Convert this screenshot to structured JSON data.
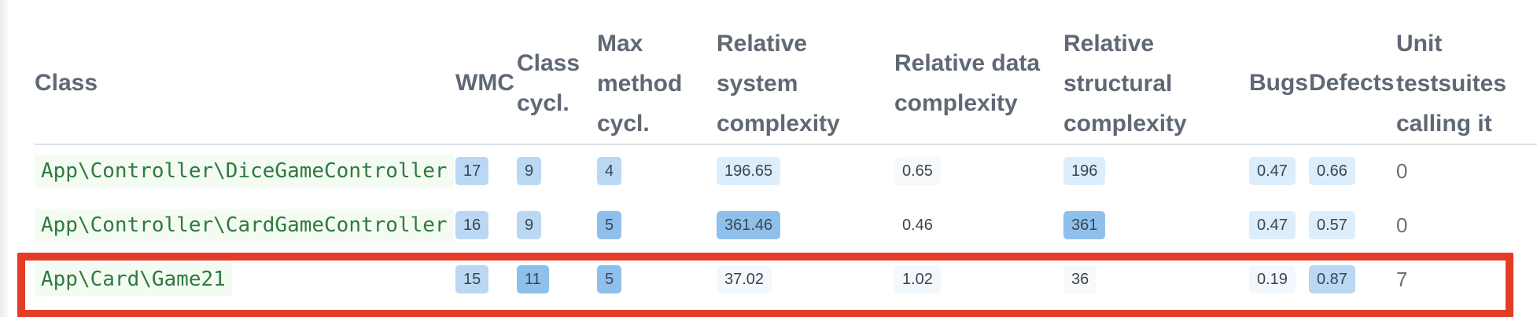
{
  "colors": {
    "link_green": "#2f7a3d",
    "badge_light": "#dceefb",
    "badge_mid": "#bad8f3",
    "badge_strong": "#8fc0ec",
    "highlight_border": "#e53c27"
  },
  "columns": {
    "class": [
      "Class"
    ],
    "wmc": [
      "WMC"
    ],
    "class_cycl": [
      "Class",
      "cycl."
    ],
    "max_method_cycl": [
      "Max",
      "method",
      "cycl."
    ],
    "rel_system": [
      "Relative",
      "system",
      "complexity"
    ],
    "rel_data": [
      "Relative data",
      "complexity"
    ],
    "rel_structural": [
      "Relative",
      "structural",
      "complexity"
    ],
    "bugs": [
      "Bugs"
    ],
    "defects": [
      "Defects"
    ],
    "unit_tests": [
      "Unit",
      "testsuites",
      "calling it"
    ]
  },
  "rows": [
    {
      "class": "App\\Controller\\DiceGameController",
      "wmc": "17",
      "class_cycl": "9",
      "max_method_cycl": "4",
      "rel_system": "196.65",
      "rel_data": "0.65",
      "rel_structural": "196",
      "bugs": "0.47",
      "defects": "0.66",
      "unit_tests": "0"
    },
    {
      "class": "App\\Controller\\CardGameController",
      "wmc": "16",
      "class_cycl": "9",
      "max_method_cycl": "5",
      "rel_system": "361.46",
      "rel_data": "0.46",
      "rel_structural": "361",
      "bugs": "0.47",
      "defects": "0.57",
      "unit_tests": "0"
    },
    {
      "class": "App\\Card\\Game21",
      "wmc": "15",
      "class_cycl": "11",
      "max_method_cycl": "5",
      "rel_system": "37.02",
      "rel_data": "1.02",
      "rel_structural": "36",
      "bugs": "0.19",
      "defects": "0.87",
      "unit_tests": "7"
    }
  ]
}
